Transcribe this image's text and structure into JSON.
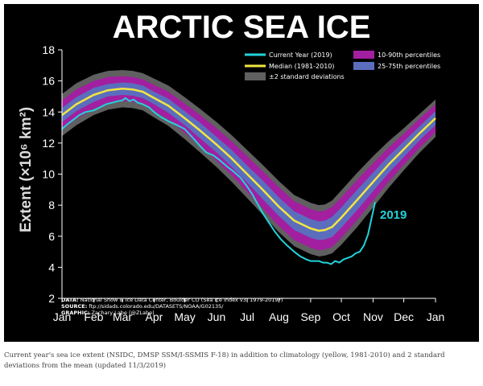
{
  "chart_data": {
    "type": "area",
    "title": "ARCTIC SEA ICE",
    "ylabel": "Extent (×10⁶ km²)",
    "ylim": [
      2,
      18
    ],
    "yticks": [
      2,
      4,
      6,
      8,
      10,
      12,
      14,
      16,
      18
    ],
    "xlim": [
      1,
      366
    ],
    "x_tick_labels": [
      "Jan",
      "Feb",
      "Mar",
      "Apr",
      "May",
      "Jun",
      "Jul",
      "Aug",
      "Sep",
      "Oct",
      "Nov",
      "Dec",
      "Jan"
    ],
    "x_tick_days": [
      1,
      32,
      60,
      91,
      121,
      152,
      182,
      213,
      244,
      274,
      305,
      335,
      366
    ],
    "grid": false,
    "legend_position": "top-right",
    "legend": {
      "current": "Current Year (2019)",
      "median": "Median (1981-2010)",
      "std": "±2 standard deviations",
      "p1090": "10-90th percentiles",
      "p2575": "25-75th percentiles"
    },
    "colors": {
      "current": "#22d3dc",
      "median": "#f2e640",
      "std": "#606060",
      "p1090": "#a21fa0",
      "p2575": "#5b6ebd",
      "background": "#000000",
      "text": "#ffffff"
    },
    "median": {
      "x": [
        1,
        15,
        32,
        46,
        60,
        70,
        80,
        91,
        105,
        121,
        136,
        152,
        167,
        182,
        197,
        213,
        228,
        244,
        252,
        258,
        265,
        274,
        289,
        305,
        320,
        335,
        350,
        366
      ],
      "y": [
        13.8,
        14.5,
        15.1,
        15.4,
        15.5,
        15.45,
        15.3,
        14.9,
        14.4,
        13.6,
        12.8,
        11.9,
        11.0,
        10.0,
        9.0,
        7.9,
        7.0,
        6.5,
        6.35,
        6.4,
        6.6,
        7.2,
        8.3,
        9.5,
        10.6,
        11.6,
        12.6,
        13.6
      ]
    },
    "current_year": {
      "label": "2019",
      "x": [
        1,
        6,
        12,
        18,
        24,
        32,
        38,
        44,
        50,
        56,
        60,
        63,
        67,
        71,
        75,
        80,
        86,
        91,
        97,
        105,
        112,
        121,
        128,
        136,
        142,
        149,
        155,
        162,
        168,
        175,
        182,
        187,
        192,
        197,
        203,
        209,
        215,
        221,
        228,
        234,
        240,
        244,
        248,
        252,
        256,
        260,
        264,
        268,
        272,
        276,
        280,
        284,
        288,
        292,
        296,
        300,
        304,
        307
      ],
      "y": [
        12.9,
        13.2,
        13.5,
        13.8,
        14.0,
        14.1,
        14.3,
        14.5,
        14.6,
        14.7,
        14.75,
        14.9,
        14.7,
        14.8,
        14.6,
        14.5,
        14.3,
        14.0,
        13.7,
        13.4,
        13.2,
        12.9,
        12.4,
        11.8,
        11.4,
        11.2,
        10.9,
        10.5,
        10.2,
        9.8,
        9.2,
        8.7,
        8.1,
        7.5,
        6.9,
        6.3,
        5.8,
        5.4,
        5.0,
        4.7,
        4.5,
        4.4,
        4.4,
        4.4,
        4.3,
        4.3,
        4.2,
        4.4,
        4.3,
        4.5,
        4.6,
        4.7,
        4.9,
        5.0,
        5.4,
        6.1,
        7.3,
        8.2
      ]
    },
    "envelopes": {
      "std_half_width": [
        1.35,
        1.35,
        1.3,
        1.25,
        1.2,
        1.2,
        1.2,
        1.25,
        1.3,
        1.35,
        1.4,
        1.45,
        1.5,
        1.55,
        1.6,
        1.65,
        1.65,
        1.65,
        1.65,
        1.65,
        1.7,
        1.75,
        1.75,
        1.65,
        1.5,
        1.35,
        1.25,
        1.2
      ],
      "p1090_half_width": [
        0.95,
        0.95,
        0.9,
        0.85,
        0.8,
        0.8,
        0.8,
        0.85,
        0.9,
        0.95,
        1.0,
        1.05,
        1.1,
        1.15,
        1.2,
        1.25,
        1.25,
        1.25,
        1.25,
        1.25,
        1.3,
        1.3,
        1.3,
        1.2,
        1.1,
        1.0,
        0.95,
        0.9
      ],
      "p2575_half_width": [
        0.45,
        0.45,
        0.45,
        0.4,
        0.4,
        0.4,
        0.4,
        0.4,
        0.45,
        0.45,
        0.5,
        0.5,
        0.55,
        0.55,
        0.6,
        0.6,
        0.6,
        0.6,
        0.6,
        0.6,
        0.65,
        0.65,
        0.65,
        0.6,
        0.55,
        0.5,
        0.45,
        0.45
      ]
    },
    "source": {
      "data_label": "DATA:",
      "data_text": "National Snow & Ice Data Center, Boulder CO (Sea Ice Index v3: 1979-2019*)",
      "source_label": "SOURCE:",
      "source_text": "ftp://sidads.colorado.edu/DATASETS/NOAA/G02135/",
      "graphic_label": "GRAPHIC:",
      "graphic_text": "Zachary Labe (@ZLabe)"
    }
  },
  "caption": "Current year's sea ice extent (NSIDC, DMSP SSM/I-SSMIS F-18) in addition to climatology (yellow, 1981-2010) and 2 standard deviations from the mean (updated 11/3/2019)"
}
